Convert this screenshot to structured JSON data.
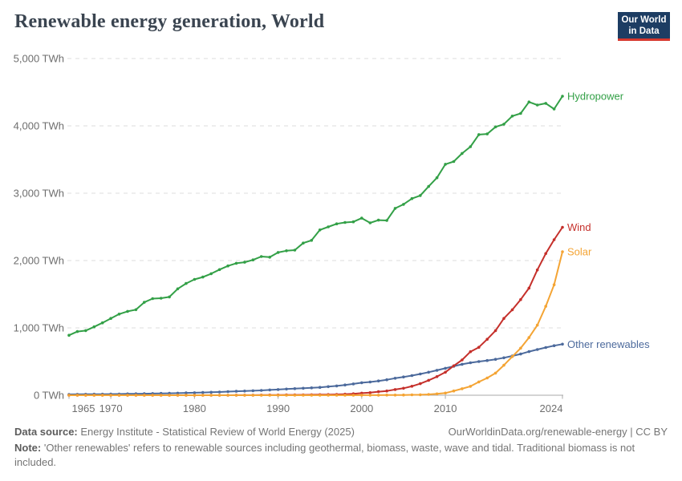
{
  "header": {
    "title": "Renewable energy generation, World",
    "logo": {
      "line1": "Our World",
      "line2": "in Data",
      "bg_color": "#1d3d63",
      "bar_color": "#d7382e"
    }
  },
  "chart_data": {
    "type": "line",
    "title": "Renewable energy generation, World",
    "unit": "TWh",
    "xlabel": "",
    "ylabel": "TWh",
    "xlim": [
      1965,
      2024
    ],
    "ylim": [
      0,
      5000
    ],
    "grid": "horizontal-dashed",
    "legend_position": "end-of-line-labels",
    "x_tick_years": [
      1965,
      1970,
      1980,
      1990,
      2000,
      2010,
      2024
    ],
    "y_ticks": [
      {
        "value": 0,
        "label": "0 TWh"
      },
      {
        "value": 1000,
        "label": "1,000 TWh"
      },
      {
        "value": 2000,
        "label": "2,000 TWh"
      },
      {
        "value": 3000,
        "label": "3,000 TWh"
      },
      {
        "value": 4000,
        "label": "4,000 TWh"
      },
      {
        "value": 5000,
        "label": "5,000 TWh"
      }
    ],
    "years": [
      1965,
      1966,
      1967,
      1968,
      1969,
      1970,
      1971,
      1972,
      1973,
      1974,
      1975,
      1976,
      1977,
      1978,
      1979,
      1980,
      1981,
      1982,
      1983,
      1984,
      1985,
      1986,
      1987,
      1988,
      1989,
      1990,
      1991,
      1992,
      1993,
      1994,
      1995,
      1996,
      1997,
      1998,
      1999,
      2000,
      2001,
      2002,
      2003,
      2004,
      2005,
      2006,
      2007,
      2008,
      2009,
      2010,
      2011,
      2012,
      2013,
      2014,
      2015,
      2016,
      2017,
      2018,
      2019,
      2020,
      2021,
      2022,
      2023,
      2024
    ],
    "series": [
      {
        "name": "Hydropower",
        "color": "#33a047",
        "values": [
          890,
          945,
          960,
          1015,
          1075,
          1140,
          1205,
          1245,
          1270,
          1380,
          1435,
          1440,
          1460,
          1580,
          1660,
          1720,
          1755,
          1805,
          1865,
          1920,
          1960,
          1975,
          2010,
          2060,
          2050,
          2120,
          2145,
          2155,
          2260,
          2300,
          2455,
          2500,
          2545,
          2565,
          2575,
          2630,
          2560,
          2600,
          2595,
          2775,
          2835,
          2920,
          2965,
          3100,
          3230,
          3430,
          3470,
          3590,
          3690,
          3870,
          3880,
          3985,
          4025,
          4145,
          4185,
          4355,
          4310,
          4335,
          4250,
          4440
        ]
      },
      {
        "name": "Wind",
        "color": "#c5302b",
        "values": [
          0,
          0,
          0,
          0,
          0,
          0,
          0,
          0,
          0,
          0,
          0,
          0,
          0,
          0,
          0,
          0,
          0,
          0,
          0,
          0.1,
          0.6,
          1,
          1.5,
          2,
          3,
          3.9,
          4.6,
          5,
          5.8,
          7,
          8,
          9.4,
          12,
          16,
          21,
          31,
          38,
          52,
          63,
          85,
          104,
          133,
          171,
          221,
          276,
          342,
          437,
          524,
          646,
          712,
          831,
          959,
          1140,
          1269,
          1420,
          1591,
          1861,
          2104,
          2310,
          2494
        ]
      },
      {
        "name": "Solar",
        "color": "#f4a434",
        "values": [
          0,
          0,
          0,
          0,
          0,
          0,
          0,
          0,
          0,
          0,
          0,
          0,
          0,
          0,
          0,
          0,
          0,
          0,
          0,
          0,
          0,
          0,
          0,
          0,
          0,
          0,
          0,
          0,
          0,
          0,
          0,
          0,
          0,
          0,
          0,
          1.1,
          1.4,
          1.7,
          2.1,
          2.8,
          4,
          5.4,
          7.4,
          11.9,
          19.8,
          32,
          63,
          97,
          132,
          198,
          256,
          328,
          445,
          574,
          699,
          856,
          1040,
          1320,
          1640,
          2131
        ]
      },
      {
        "name": "Other renewables",
        "color": "#4c6a9c",
        "values": [
          12,
          13,
          14,
          15,
          16,
          17,
          18,
          20,
          21,
          23,
          25,
          27,
          29,
          31,
          34,
          37,
          40,
          44,
          48,
          53,
          58,
          62,
          67,
          72,
          78,
          85,
          92,
          98,
          104,
          110,
          117,
          127,
          138,
          152,
          168,
          186,
          196,
          212,
          230,
          252,
          272,
          292,
          316,
          342,
          370,
          400,
          430,
          460,
          482,
          500,
          516,
          533,
          556,
          583,
          612,
          648,
          678,
          708,
          736,
          758
        ]
      }
    ]
  },
  "footer": {
    "source_label": "Data source:",
    "source_text": "Energy Institute - Statistical Review of World Energy (2025)",
    "link": "OurWorldinData.org/renewable-energy | CC BY",
    "note_label": "Note:",
    "note_text": "'Other renewables' refers to renewable sources including geothermal, biomass, waste, wave and tidal. Traditional biomass is not included."
  }
}
